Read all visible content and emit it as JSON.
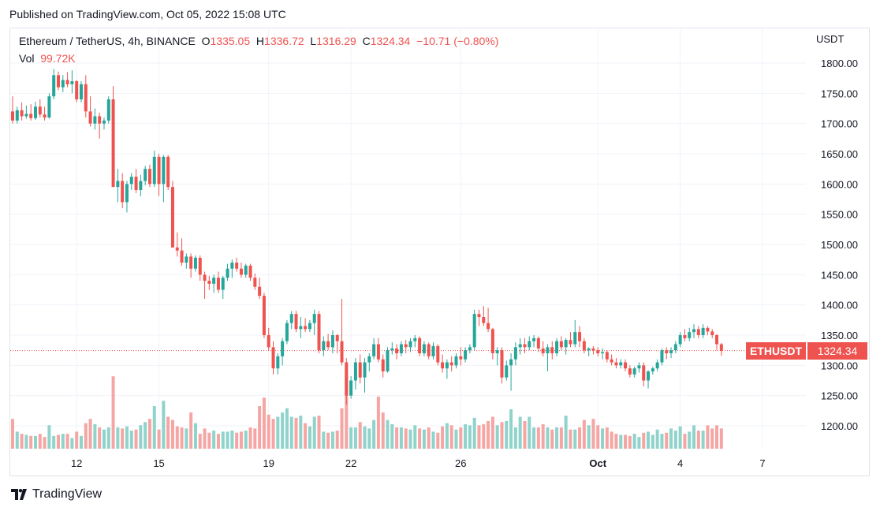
{
  "published": "Published on TradingView.com, Oct 05, 2022 15:08 UTC",
  "legend": {
    "symbol_text": "Ethereum / TetherUS, 4h, BINANCE",
    "o_label": "O",
    "o": "1335.05",
    "h_label": "H",
    "h": "1336.72",
    "l_label": "L",
    "l": "1316.29",
    "c_label": "C",
    "c": "1324.34",
    "change": "−10.71 (−0.80%)",
    "vol_label": "Vol",
    "vol": "99.72K"
  },
  "currency": "USDT",
  "last_price_tag": {
    "symbol": "ETHUSDT",
    "price": "1324.34"
  },
  "footer": {
    "brand": "TradingView",
    "logo": "tradingview-logo-icon"
  },
  "colors": {
    "up": "#26a69a",
    "down": "#ef5350",
    "up_vol": "#8fd3cb",
    "down_vol": "#f5a5a3",
    "grid": "#f0f3fa"
  },
  "chart_data": {
    "type": "candlestick",
    "interval": "4h",
    "ylim": [
      1170,
      1820
    ],
    "y_ticks": [
      "1200.00",
      "1250.00",
      "1300.00",
      "1350.00",
      "1400.00",
      "1450.00",
      "1500.00",
      "1550.00",
      "1600.00",
      "1650.00",
      "1700.00",
      "1750.00",
      "1800.00"
    ],
    "x_ticks": [
      {
        "label": "12",
        "bar": 14
      },
      {
        "label": "15",
        "bar": 32
      },
      {
        "label": "19",
        "bar": 56
      },
      {
        "label": "22",
        "bar": 74
      },
      {
        "label": "26",
        "bar": 98
      },
      {
        "label": "Oct",
        "bar": 128,
        "bold": true
      },
      {
        "label": "4",
        "bar": 146
      },
      {
        "label": "7",
        "bar": 164
      }
    ],
    "bars_total": 174,
    "last_close": 1324.34,
    "candles": [
      [
        1720,
        1745,
        1700,
        1705
      ],
      [
        1705,
        1728,
        1700,
        1722
      ],
      [
        1722,
        1735,
        1705,
        1712
      ],
      [
        1712,
        1730,
        1708,
        1716
      ],
      [
        1716,
        1732,
        1705,
        1709
      ],
      [
        1709,
        1736,
        1706,
        1728
      ],
      [
        1728,
        1740,
        1710,
        1715
      ],
      [
        1715,
        1728,
        1705,
        1710
      ],
      [
        1710,
        1750,
        1708,
        1745
      ],
      [
        1745,
        1790,
        1740,
        1780
      ],
      [
        1780,
        1786,
        1755,
        1760
      ],
      [
        1760,
        1780,
        1752,
        1772
      ],
      [
        1772,
        1785,
        1760,
        1765
      ],
      [
        1765,
        1788,
        1750,
        1770
      ],
      [
        1770,
        1772,
        1735,
        1740
      ],
      [
        1740,
        1770,
        1735,
        1765
      ],
      [
        1765,
        1780,
        1710,
        1720
      ],
      [
        1720,
        1745,
        1695,
        1700
      ],
      [
        1700,
        1725,
        1690,
        1712
      ],
      [
        1712,
        1718,
        1675,
        1700
      ],
      [
        1700,
        1710,
        1690,
        1705
      ],
      [
        1705,
        1745,
        1700,
        1740
      ],
      [
        1740,
        1762,
        1600,
        1595
      ],
      [
        1595,
        1625,
        1570,
        1605
      ],
      [
        1605,
        1618,
        1560,
        1570
      ],
      [
        1570,
        1605,
        1553,
        1600
      ],
      [
        1600,
        1618,
        1590,
        1612
      ],
      [
        1612,
        1625,
        1585,
        1590
      ],
      [
        1590,
        1615,
        1580,
        1605
      ],
      [
        1605,
        1630,
        1598,
        1625
      ],
      [
        1625,
        1632,
        1595,
        1600
      ],
      [
        1600,
        1655,
        1595,
        1645
      ],
      [
        1645,
        1650,
        1580,
        1600
      ],
      [
        1600,
        1648,
        1570,
        1645
      ],
      [
        1645,
        1648,
        1590,
        1595
      ],
      [
        1595,
        1605,
        1500,
        1495
      ],
      [
        1495,
        1520,
        1480,
        1490
      ],
      [
        1490,
        1510,
        1465,
        1470
      ],
      [
        1470,
        1485,
        1460,
        1480
      ],
      [
        1480,
        1485,
        1445,
        1460
      ],
      [
        1460,
        1482,
        1455,
        1478
      ],
      [
        1478,
        1482,
        1440,
        1450
      ],
      [
        1450,
        1455,
        1410,
        1440
      ],
      [
        1440,
        1448,
        1425,
        1435
      ],
      [
        1435,
        1450,
        1420,
        1445
      ],
      [
        1445,
        1455,
        1420,
        1425
      ],
      [
        1425,
        1448,
        1410,
        1445
      ],
      [
        1445,
        1468,
        1440,
        1460
      ],
      [
        1460,
        1475,
        1445,
        1470
      ],
      [
        1470,
        1478,
        1455,
        1460
      ],
      [
        1460,
        1470,
        1445,
        1450
      ],
      [
        1450,
        1468,
        1445,
        1465
      ],
      [
        1465,
        1468,
        1440,
        1445
      ],
      [
        1445,
        1452,
        1425,
        1430
      ],
      [
        1430,
        1445,
        1410,
        1415
      ],
      [
        1415,
        1420,
        1345,
        1350
      ],
      [
        1350,
        1362,
        1325,
        1330
      ],
      [
        1330,
        1340,
        1285,
        1295
      ],
      [
        1295,
        1320,
        1285,
        1315
      ],
      [
        1315,
        1345,
        1300,
        1340
      ],
      [
        1340,
        1375,
        1335,
        1370
      ],
      [
        1370,
        1390,
        1360,
        1385
      ],
      [
        1385,
        1390,
        1355,
        1360
      ],
      [
        1360,
        1380,
        1345,
        1365
      ],
      [
        1365,
        1378,
        1355,
        1360
      ],
      [
        1360,
        1375,
        1355,
        1370
      ],
      [
        1370,
        1392,
        1350,
        1385
      ],
      [
        1385,
        1390,
        1320,
        1325
      ],
      [
        1325,
        1348,
        1315,
        1340
      ],
      [
        1340,
        1352,
        1325,
        1330
      ],
      [
        1330,
        1358,
        1320,
        1350
      ],
      [
        1350,
        1352,
        1320,
        1340
      ],
      [
        1340,
        1410,
        1300,
        1305
      ],
      [
        1305,
        1312,
        1235,
        1250
      ],
      [
        1250,
        1282,
        1245,
        1275
      ],
      [
        1275,
        1312,
        1260,
        1305
      ],
      [
        1305,
        1318,
        1270,
        1280
      ],
      [
        1280,
        1312,
        1255,
        1305
      ],
      [
        1305,
        1320,
        1290,
        1315
      ],
      [
        1315,
        1345,
        1310,
        1335
      ],
      [
        1335,
        1345,
        1305,
        1310
      ],
      [
        1310,
        1318,
        1280,
        1290
      ],
      [
        1290,
        1330,
        1288,
        1325
      ],
      [
        1325,
        1338,
        1318,
        1328
      ],
      [
        1328,
        1335,
        1310,
        1320
      ],
      [
        1320,
        1340,
        1315,
        1335
      ],
      [
        1335,
        1342,
        1320,
        1330
      ],
      [
        1330,
        1345,
        1322,
        1340
      ],
      [
        1340,
        1350,
        1330,
        1345
      ],
      [
        1345,
        1348,
        1315,
        1320
      ],
      [
        1320,
        1340,
        1315,
        1335
      ],
      [
        1335,
        1338,
        1310,
        1315
      ],
      [
        1315,
        1338,
        1310,
        1332
      ],
      [
        1332,
        1335,
        1300,
        1305
      ],
      [
        1305,
        1318,
        1288,
        1295
      ],
      [
        1295,
        1310,
        1278,
        1305
      ],
      [
        1305,
        1315,
        1290,
        1300
      ],
      [
        1300,
        1320,
        1295,
        1315
      ],
      [
        1315,
        1330,
        1300,
        1310
      ],
      [
        1310,
        1330,
        1305,
        1325
      ],
      [
        1325,
        1335,
        1320,
        1330
      ],
      [
        1330,
        1392,
        1325,
        1385
      ],
      [
        1385,
        1392,
        1365,
        1380
      ],
      [
        1380,
        1398,
        1365,
        1370
      ],
      [
        1370,
        1395,
        1355,
        1360
      ],
      [
        1360,
        1362,
        1310,
        1320
      ],
      [
        1320,
        1330,
        1300,
        1325
      ],
      [
        1325,
        1330,
        1270,
        1280
      ],
      [
        1280,
        1308,
        1275,
        1300
      ],
      [
        1300,
        1320,
        1258,
        1310
      ],
      [
        1310,
        1338,
        1300,
        1330
      ],
      [
        1330,
        1345,
        1318,
        1335
      ],
      [
        1335,
        1345,
        1320,
        1330
      ],
      [
        1330,
        1348,
        1325,
        1340
      ],
      [
        1340,
        1350,
        1330,
        1345
      ],
      [
        1345,
        1348,
        1322,
        1328
      ],
      [
        1328,
        1340,
        1315,
        1320
      ],
      [
        1320,
        1335,
        1290,
        1330
      ],
      [
        1330,
        1340,
        1310,
        1320
      ],
      [
        1320,
        1345,
        1315,
        1340
      ],
      [
        1340,
        1348,
        1325,
        1330
      ],
      [
        1330,
        1345,
        1318,
        1342
      ],
      [
        1342,
        1355,
        1330,
        1335
      ],
      [
        1335,
        1375,
        1330,
        1355
      ],
      [
        1355,
        1365,
        1330,
        1340
      ],
      [
        1340,
        1345,
        1320,
        1325
      ],
      [
        1325,
        1330,
        1315,
        1328
      ],
      [
        1328,
        1332,
        1318,
        1325
      ],
      [
        1325,
        1330,
        1315,
        1320
      ],
      [
        1320,
        1328,
        1310,
        1322
      ],
      [
        1322,
        1325,
        1305,
        1310
      ],
      [
        1310,
        1318,
        1300,
        1305
      ],
      [
        1305,
        1312,
        1295,
        1300
      ],
      [
        1300,
        1310,
        1295,
        1305
      ],
      [
        1305,
        1310,
        1290,
        1295
      ],
      [
        1295,
        1300,
        1280,
        1285
      ],
      [
        1285,
        1298,
        1280,
        1295
      ],
      [
        1295,
        1305,
        1288,
        1300
      ],
      [
        1300,
        1305,
        1265,
        1275
      ],
      [
        1275,
        1292,
        1262,
        1290
      ],
      [
        1290,
        1298,
        1285,
        1295
      ],
      [
        1295,
        1310,
        1290,
        1305
      ],
      [
        1305,
        1328,
        1300,
        1325
      ],
      [
        1325,
        1330,
        1310,
        1320
      ],
      [
        1320,
        1330,
        1312,
        1325
      ],
      [
        1325,
        1340,
        1320,
        1335
      ],
      [
        1335,
        1355,
        1330,
        1350
      ],
      [
        1350,
        1360,
        1340,
        1345
      ],
      [
        1345,
        1362,
        1340,
        1355
      ],
      [
        1355,
        1368,
        1345,
        1360
      ],
      [
        1360,
        1365,
        1345,
        1350
      ],
      [
        1350,
        1368,
        1345,
        1362
      ],
      [
        1362,
        1365,
        1350,
        1356
      ],
      [
        1356,
        1360,
        1345,
        1350
      ],
      [
        1350,
        1352,
        1325,
        1335
      ],
      [
        1335,
        1337,
        1316,
        1324
      ]
    ],
    "volume_heights": [
      0.28,
      0.16,
      0.14,
      0.13,
      0.12,
      0.12,
      0.14,
      0.11,
      0.22,
      0.12,
      0.13,
      0.14,
      0.14,
      0.1,
      0.16,
      0.12,
      0.24,
      0.28,
      0.23,
      0.2,
      0.18,
      0.2,
      0.68,
      0.2,
      0.19,
      0.21,
      0.17,
      0.18,
      0.22,
      0.25,
      0.28,
      0.4,
      0.18,
      0.45,
      0.3,
      0.27,
      0.21,
      0.2,
      0.19,
      0.34,
      0.24,
      0.14,
      0.19,
      0.15,
      0.17,
      0.14,
      0.16,
      0.16,
      0.17,
      0.15,
      0.16,
      0.17,
      0.2,
      0.19,
      0.4,
      0.48,
      0.32,
      0.28,
      0.3,
      0.34,
      0.38,
      0.3,
      0.29,
      0.31,
      0.24,
      0.21,
      0.3,
      0.31,
      0.16,
      0.15,
      0.16,
      0.17,
      0.38,
      0.68,
      0.2,
      0.2,
      0.25,
      0.21,
      0.19,
      0.27,
      0.49,
      0.34,
      0.27,
      0.23,
      0.2,
      0.2,
      0.19,
      0.18,
      0.22,
      0.19,
      0.18,
      0.2,
      0.16,
      0.15,
      0.21,
      0.24,
      0.22,
      0.18,
      0.2,
      0.23,
      0.22,
      0.29,
      0.22,
      0.23,
      0.26,
      0.3,
      0.22,
      0.25,
      0.26,
      0.37,
      0.2,
      0.3,
      0.26,
      0.3,
      0.2,
      0.2,
      0.23,
      0.2,
      0.18,
      0.2,
      0.2,
      0.31,
      0.18,
      0.18,
      0.2,
      0.27,
      0.22,
      0.28,
      0.22,
      0.19,
      0.2,
      0.16,
      0.14,
      0.13,
      0.13,
      0.12,
      0.14,
      0.11,
      0.15,
      0.16,
      0.13,
      0.18,
      0.14,
      0.15,
      0.19,
      0.17,
      0.21,
      0.14,
      0.16,
      0.22,
      0.17,
      0.17,
      0.22,
      0.19,
      0.22,
      0.19,
      0.15,
      0.17,
      0.22
    ]
  }
}
